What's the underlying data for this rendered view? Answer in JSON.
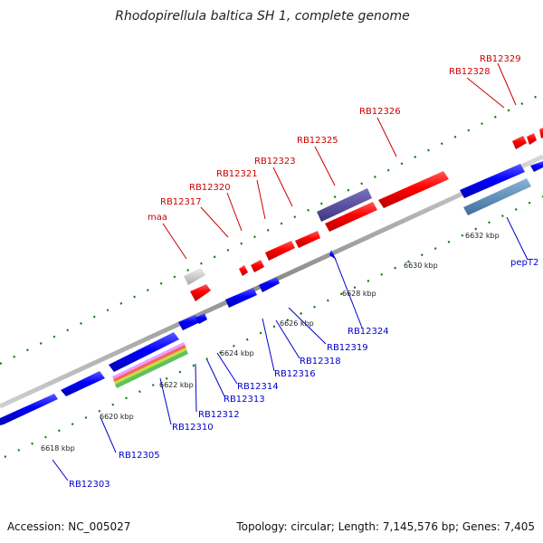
{
  "title": "Rhodopirellula baltica SH 1, complete genome",
  "footer": {
    "accession": "Accession: NC_005027",
    "topology": "Topology: circular; Length: 7,145,576 bp; Genes: 7,405"
  },
  "colors": {
    "forward_gene": "#ff0000",
    "reverse_gene": "#0000ff",
    "forward_label": "#cc0000",
    "reverse_label": "#0000cc",
    "backbone": "#888888",
    "tick_dots": "#008000"
  },
  "scale_ticks": [
    "6618 kbp",
    "6620 kbp",
    "6622 kbp",
    "6624 kbp",
    "6626 kbp",
    "6628 kbp",
    "6630 kbp",
    "6632 kbp"
  ],
  "forward_labels": [
    "maa",
    "RB12317",
    "RB12320",
    "RB12321",
    "RB12323",
    "RB12325",
    "RB12326",
    "RB12328",
    "RB12329"
  ],
  "reverse_labels": [
    "RB12303",
    "RB12305",
    "RB12310",
    "RB12312",
    "RB12313",
    "RB12314",
    "RB12316",
    "RB12318",
    "RB12319",
    "RB12324",
    "pepT2"
  ]
}
